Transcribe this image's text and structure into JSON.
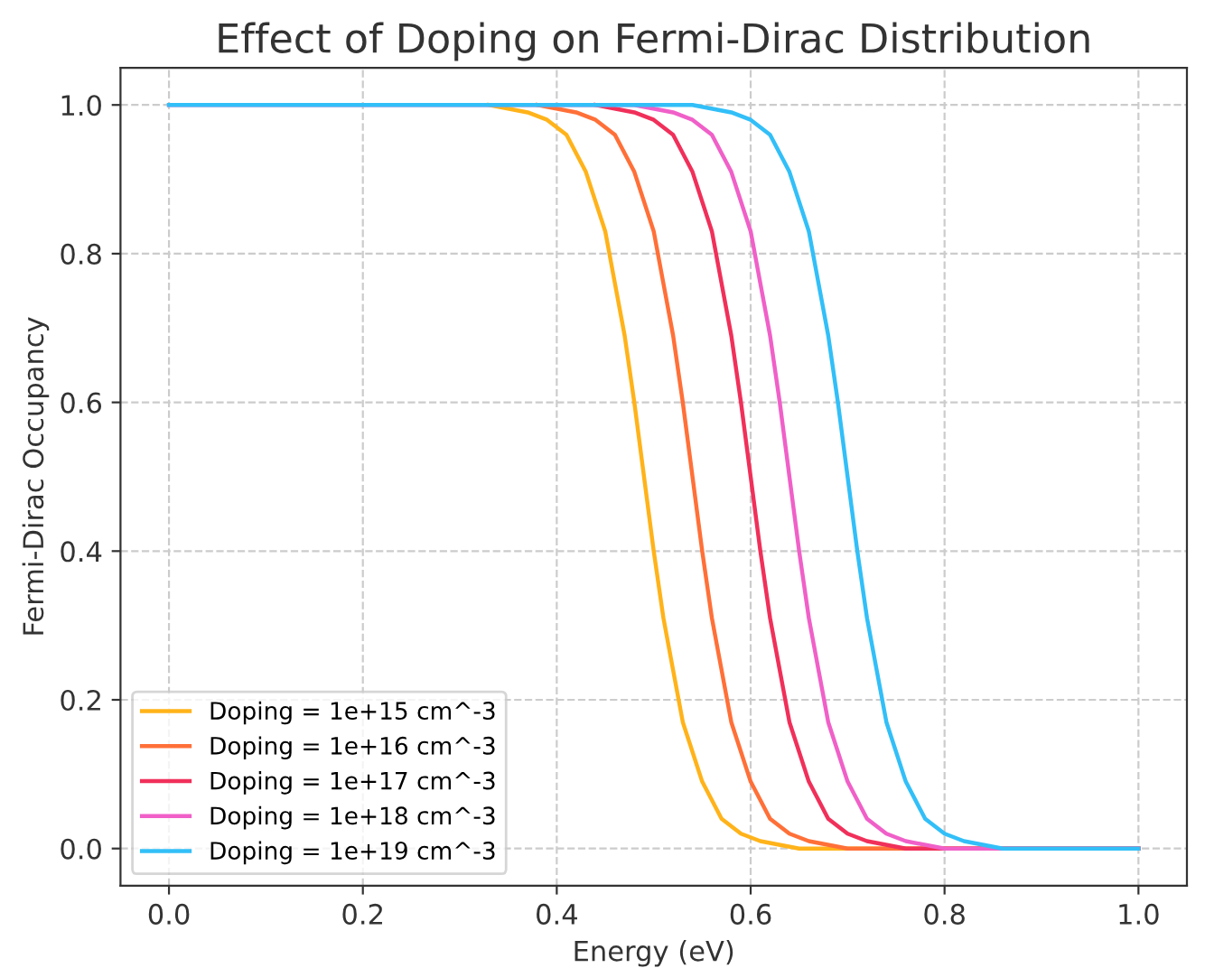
{
  "chart_data": {
    "type": "line",
    "title": "Effect of Doping on Fermi-Dirac Distribution",
    "xlabel": "Energy (eV)",
    "ylabel": "Fermi-Dirac Occupancy",
    "xlim": [
      -0.05,
      1.05
    ],
    "ylim": [
      -0.05,
      1.05
    ],
    "xticks": [
      {
        "value": 0,
        "label": "0.0"
      },
      0.2,
      0.4,
      0.6,
      0.8,
      {
        "value": 1,
        "label": "1.0"
      }
    ],
    "yticks": [
      {
        "value": 0,
        "label": "0.0"
      },
      0.2,
      0.4,
      0.6,
      0.8,
      {
        "value": 1,
        "label": "1.0"
      }
    ],
    "grid": true,
    "legend": "bottom left",
    "marker": "none",
    "line_style": "solid",
    "series": [
      {
        "name": "Doping = 1e+15 cm^-3",
        "color": "#ffb31a",
        "x": [
          0.33,
          0.37,
          0.39,
          0.41,
          0.43,
          0.45,
          0.46,
          0.47,
          0.48,
          0.49,
          0.5,
          0.51,
          0.52,
          0.53,
          0.55,
          0.57,
          0.59,
          0.61,
          0.65,
          1.0
        ],
        "values": [
          1.0,
          0.99,
          0.98,
          0.96,
          0.91,
          0.83,
          0.76,
          0.69,
          0.6,
          0.5,
          0.4,
          0.31,
          0.24,
          0.17,
          0.09,
          0.04,
          0.02,
          0.01,
          0.0,
          0.0
        ]
      },
      {
        "name": "Doping = 1e+16 cm^-3",
        "color": "#ff7038",
        "x": [
          0.38,
          0.42,
          0.44,
          0.46,
          0.48,
          0.5,
          0.51,
          0.52,
          0.53,
          0.54,
          0.55,
          0.56,
          0.57,
          0.58,
          0.6,
          0.62,
          0.64,
          0.66,
          0.7,
          1.0
        ],
        "values": [
          1.0,
          0.99,
          0.98,
          0.96,
          0.91,
          0.83,
          0.76,
          0.69,
          0.6,
          0.5,
          0.4,
          0.31,
          0.24,
          0.17,
          0.09,
          0.04,
          0.02,
          0.01,
          0.0,
          0.0
        ]
      },
      {
        "name": "Doping = 1e+17 cm^-3",
        "color": "#f0305a",
        "x": [
          0.44,
          0.48,
          0.5,
          0.52,
          0.54,
          0.56,
          0.57,
          0.58,
          0.59,
          0.6,
          0.61,
          0.62,
          0.63,
          0.64,
          0.66,
          0.68,
          0.7,
          0.72,
          0.76,
          1.0
        ],
        "values": [
          1.0,
          0.99,
          0.98,
          0.96,
          0.91,
          0.83,
          0.76,
          0.69,
          0.6,
          0.5,
          0.4,
          0.31,
          0.24,
          0.17,
          0.09,
          0.04,
          0.02,
          0.01,
          0.0,
          0.0
        ]
      },
      {
        "name": "Doping = 1e+18 cm^-3",
        "color": "#f060c8",
        "x": [
          0,
          0.48,
          0.52,
          0.54,
          0.56,
          0.58,
          0.6,
          0.61,
          0.62,
          0.63,
          0.64,
          0.65,
          0.66,
          0.67,
          0.68,
          0.7,
          0.72,
          0.74,
          0.76,
          0.8,
          1.0
        ],
        "values": [
          1.0,
          1.0,
          0.99,
          0.98,
          0.96,
          0.91,
          0.83,
          0.76,
          0.69,
          0.6,
          0.5,
          0.4,
          0.31,
          0.24,
          0.17,
          0.09,
          0.04,
          0.02,
          0.01,
          0.0,
          0.0
        ]
      },
      {
        "name": "Doping = 1e+19 cm^-3",
        "color": "#32bff8",
        "x": [
          0,
          0.54,
          0.58,
          0.6,
          0.62,
          0.64,
          0.66,
          0.67,
          0.68,
          0.69,
          0.7,
          0.71,
          0.72,
          0.73,
          0.74,
          0.76,
          0.78,
          0.8,
          0.82,
          0.86,
          1.0
        ],
        "values": [
          1.0,
          1.0,
          0.99,
          0.98,
          0.96,
          0.91,
          0.83,
          0.76,
          0.69,
          0.6,
          0.5,
          0.4,
          0.31,
          0.24,
          0.17,
          0.09,
          0.04,
          0.02,
          0.01,
          0.0,
          0.0
        ]
      }
    ]
  }
}
